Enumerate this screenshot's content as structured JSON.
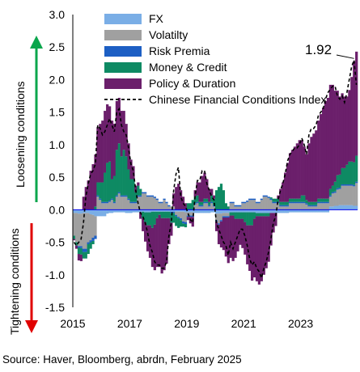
{
  "chart_data": {
    "type": "bar",
    "stacked": true,
    "x_start": "2015-01",
    "x_step": "month",
    "x_ticks": [
      "2015",
      "2017",
      "2019",
      "2021",
      "2023"
    ],
    "y_ticks": [
      "3.0",
      "2.5",
      "2.0",
      "1.5",
      "1.0",
      "0.5",
      "0.0",
      "-0.5",
      "-1.0",
      "-1.5"
    ],
    "ylim": [
      -1.5,
      3.0
    ],
    "legend_position": "top-right",
    "series": [
      {
        "name": "FX",
        "color": "#7aaee6",
        "values": [
          -0.05,
          -0.05,
          -0.06,
          -0.06,
          -0.05,
          -0.05,
          -0.05,
          -0.07,
          -0.08,
          -0.1,
          -0.1,
          -0.1,
          -0.1,
          -0.1,
          -0.06,
          -0.05,
          -0.05,
          -0.04,
          -0.04,
          -0.04,
          -0.04,
          -0.04,
          -0.05,
          -0.05,
          -0.05,
          -0.04,
          -0.04,
          -0.04,
          -0.04,
          -0.03,
          -0.04,
          -0.04,
          -0.04,
          -0.03,
          -0.03,
          -0.03,
          -0.03,
          -0.03,
          -0.03,
          -0.03,
          -0.03,
          -0.03,
          -0.03,
          -0.03,
          -0.03,
          -0.03,
          -0.03,
          -0.04,
          -0.04,
          -0.04,
          -0.04,
          -0.05,
          -0.05,
          -0.05,
          -0.05,
          -0.05,
          -0.05,
          -0.05,
          -0.04,
          -0.04,
          -0.06,
          -0.06,
          -0.06,
          -0.05,
          -0.05,
          -0.05,
          -0.04,
          -0.04,
          -0.04,
          -0.04,
          -0.04,
          -0.04,
          -0.04,
          -0.04,
          -0.04,
          -0.04,
          -0.04,
          -0.05,
          -0.05,
          -0.05,
          -0.05,
          -0.05,
          -0.05,
          -0.05,
          -0.05,
          -0.05,
          -0.05,
          -0.05,
          -0.05,
          -0.05,
          -0.05,
          -0.04,
          -0.04,
          -0.04,
          -0.04,
          -0.04,
          -0.04,
          -0.04,
          -0.04,
          -0.04,
          -0.04,
          -0.04,
          -0.04,
          -0.04,
          -0.04,
          -0.04,
          -0.04,
          -0.04,
          0.05,
          0.05,
          0.06,
          0.06,
          0.07,
          0.07,
          0.07,
          0.07,
          0.07,
          0.07,
          0.06,
          0.06
        ]
      },
      {
        "name": "Volatilty",
        "color": "#a0a0a0",
        "values": [
          -0.35,
          -0.45,
          -0.5,
          -0.5,
          -0.55,
          -0.55,
          -0.45,
          -0.4,
          -0.35,
          -0.3,
          0.2,
          0.15,
          0.1,
          0.1,
          0.1,
          0.12,
          0.15,
          0.1,
          0.2,
          0.25,
          0.2,
          0.2,
          0.2,
          0.15,
          0.1,
          0.1,
          0.1,
          0.2,
          0.2,
          0.25,
          0.25,
          0.2,
          0.2,
          0.2,
          0.18,
          0.15,
          0.1,
          0.1,
          0.15,
          0.1,
          0.05,
          0.05,
          0.05,
          -0.05,
          -0.08,
          -0.1,
          -0.15,
          -0.15,
          -0.05,
          -0.05,
          -0.05,
          0.08,
          0.1,
          0.05,
          0.05,
          0.1,
          0.1,
          0.05,
          0.1,
          0.05,
          -0.1,
          -0.15,
          -0.1,
          -0.05,
          -0.05,
          -0.05,
          0.1,
          0.1,
          0.05,
          0.05,
          0.05,
          0.1,
          0.1,
          0.12,
          0.15,
          0.15,
          0.15,
          0.1,
          0.1,
          0.15,
          0.2,
          0.2,
          0.18,
          0.15,
          0.1,
          0.1,
          0.1,
          0.05,
          0.05,
          0.05,
          0.05,
          0.1,
          0.1,
          0.1,
          0.1,
          0.1,
          0.1,
          0.1,
          0.08,
          0.05,
          0.05,
          0.05,
          0.05,
          0.1,
          0.1,
          0.1,
          0.1,
          0.1,
          0.15,
          0.2,
          0.2,
          0.25,
          0.25,
          0.3,
          0.3,
          0.3,
          0.3,
          0.3,
          0.3,
          0.35,
          0.3
        ]
      },
      {
        "name": "Risk Premia",
        "color": "#1d5fc4",
        "values": [
          0,
          0,
          -0.02,
          -0.03,
          -0.05,
          -0.05,
          -0.03,
          -0.03,
          -0.05,
          -0.05,
          0.02,
          0.02,
          0.02,
          0.02,
          0.02,
          0.02,
          0.02,
          0.02,
          0.02,
          0.02,
          0.02,
          0.02,
          0.02,
          0.02,
          0.02,
          0.02,
          0.02,
          0.02,
          0.02,
          0.02,
          0.02,
          0.02,
          0.02,
          0.02,
          0.02,
          0.02,
          0.02,
          0.02,
          0.02,
          0.02,
          0.02,
          -0.02,
          -0.02,
          -0.02,
          -0.02,
          -0.03,
          -0.03,
          -0.03,
          -0.02,
          -0.02,
          -0.02,
          0.02,
          0.02,
          0.02,
          0.02,
          0.02,
          0.02,
          0.02,
          0.02,
          0.02,
          -0.02,
          -0.02,
          -0.02,
          -0.02,
          -0.02,
          -0.02,
          0.02,
          0.02,
          0.02,
          0.02,
          0.02,
          0.02,
          0.02,
          0.02,
          0.02,
          0.02,
          0.02,
          0.02,
          0.02,
          0.02,
          0.02,
          0.02,
          0.02,
          0.02,
          0.02,
          0.02,
          0.02,
          0.02,
          0.02,
          0.02,
          0.02,
          0.02,
          0.02,
          0.02,
          0.02,
          0.02,
          0.02,
          0.02,
          0.02,
          0.02,
          0.02,
          0.02,
          0.02,
          0.02,
          0.02,
          0.02,
          0.02,
          0.02,
          0.02,
          0.02,
          0.02,
          0.02,
          0.02,
          0.02,
          0.02,
          0.02,
          0.02,
          0.02,
          0.02,
          0.02
        ]
      },
      {
        "name": "Money & Credit",
        "color": "#0e8a63",
        "values": [
          -0.05,
          -0.05,
          -0.1,
          -0.1,
          -0.1,
          -0.1,
          -0.15,
          -0.1,
          -0.05,
          0.05,
          0.2,
          0.25,
          0.3,
          0.45,
          0.6,
          0.6,
          0.3,
          0.4,
          0.7,
          0.75,
          0.6,
          0.7,
          0.6,
          0.45,
          0.35,
          0.35,
          0.15,
          0.15,
          0.1,
          -0.1,
          -0.15,
          -0.2,
          -0.2,
          -0.25,
          -0.2,
          -0.1,
          -0.05,
          -0.1,
          -0.1,
          -0.1,
          -0.1,
          -0.15,
          -0.15,
          -0.15,
          -0.15,
          -0.1,
          -0.05,
          -0.05,
          0.1,
          0.1,
          0.15,
          0.1,
          0.1,
          0.05,
          0.05,
          0.05,
          0.05,
          0.05,
          0.1,
          0.1,
          0.3,
          0.35,
          0.4,
          0.3,
          0.1,
          0.05,
          -0.05,
          -0.05,
          -0.1,
          -0.1,
          -0.1,
          -0.1,
          -0.15,
          -0.2,
          -0.2,
          -0.2,
          -0.1,
          -0.05,
          -0.05,
          -0.05,
          -0.05,
          -0.05,
          -0.05,
          0.02,
          0.05,
          0.05,
          0.05,
          0.05,
          0.05,
          0.05,
          0.05,
          0.05,
          0.05,
          0.05,
          0.05,
          0.05,
          0.1,
          0.1,
          0.05,
          0.05,
          0.05,
          0.05,
          0.05,
          0.05,
          0.05,
          0.05,
          0.05,
          0.05,
          0.1,
          0.1,
          0.15,
          0.2,
          0.2,
          0.25,
          0.25,
          0.3,
          0.35,
          0.35,
          0.35,
          0.4
        ]
      },
      {
        "name": "Policy & Duration",
        "color": "#6b1f6b",
        "values": [
          -0.02,
          -0.05,
          -0.1,
          -0.1,
          0.2,
          0.35,
          0.45,
          0.6,
          0.7,
          0.8,
          0.85,
          0.9,
          0.95,
          0.95,
          0.9,
          0.85,
          0.9,
          0.8,
          0.75,
          0.7,
          0.7,
          0.6,
          0.5,
          0.4,
          0.3,
          0.2,
          0.1,
          0.05,
          -0.1,
          -0.2,
          -0.3,
          -0.4,
          -0.5,
          -0.6,
          -0.7,
          -0.75,
          -0.8,
          -0.85,
          -0.8,
          -0.7,
          -0.4,
          -0.2,
          0.2,
          0.35,
          0.4,
          0.3,
          0.2,
          0.1,
          -0.05,
          -0.1,
          -0.15,
          0.1,
          0.2,
          0.3,
          0.4,
          0.4,
          0.3,
          0.2,
          0.1,
          0.05,
          -0.15,
          -0.3,
          -0.4,
          -0.5,
          -0.6,
          -0.7,
          -0.65,
          -0.7,
          -0.6,
          -0.5,
          -0.4,
          -0.45,
          -0.5,
          -0.6,
          -0.7,
          -0.85,
          -0.9,
          -1.0,
          -1.05,
          -1.0,
          -0.9,
          -0.8,
          -0.7,
          -0.5,
          -0.3,
          -0.2,
          0.05,
          0.2,
          0.3,
          0.45,
          0.6,
          0.7,
          0.75,
          0.8,
          0.85,
          0.9,
          0.85,
          0.75,
          0.7,
          0.9,
          1.0,
          1.05,
          1.1,
          1.2,
          1.3,
          1.4,
          1.5,
          1.55,
          1.6,
          1.55,
          1.4,
          1.3,
          1.2,
          1.15,
          1.1,
          1.05,
          1.1,
          1.3,
          1.55,
          1.6
        ]
      }
    ],
    "line": {
      "name": "Chinese Financial Conditions Index",
      "color": "#000000",
      "values": [
        -0.5,
        -0.55,
        -0.5,
        -0.45,
        -0.2,
        0.2,
        0.4,
        0.55,
        0.6,
        0.7,
        1.3,
        1.25,
        1.15,
        1.2,
        1.3,
        1.4,
        1.3,
        1.2,
        1.5,
        1.55,
        1.3,
        1.2,
        1.15,
        0.95,
        0.7,
        0.6,
        0.3,
        0.1,
        -0.05,
        -0.1,
        -0.2,
        -0.35,
        -0.55,
        -0.65,
        -0.8,
        -0.85,
        -0.85,
        -0.9,
        -0.9,
        -0.8,
        -0.4,
        -0.2,
        0.3,
        0.55,
        0.65,
        0.2,
        0.1,
        0.05,
        -0.05,
        -0.15,
        -0.2,
        0.2,
        0.45,
        0.45,
        0.6,
        0.6,
        0.4,
        0.3,
        0.2,
        0.15,
        -0.2,
        -0.3,
        -0.4,
        -0.5,
        -0.55,
        -0.7,
        -0.5,
        -0.6,
        -0.5,
        -0.4,
        -0.3,
        -0.3,
        -0.4,
        -0.55,
        -0.75,
        -0.85,
        -0.8,
        -0.9,
        -0.95,
        -1.05,
        -0.9,
        -0.8,
        -0.65,
        -0.45,
        -0.2,
        -0.1,
        0.15,
        0.3,
        0.4,
        0.55,
        0.75,
        0.85,
        0.9,
        0.95,
        0.95,
        1.0,
        1.1,
        1.0,
        0.85,
        1.15,
        1.25,
        1.25,
        1.3,
        1.45,
        1.5,
        1.55,
        1.7,
        1.8,
        1.85,
        1.9,
        1.9,
        1.75,
        1.7,
        1.75,
        1.65,
        1.8,
        2.0,
        2.2,
        2.3,
        1.92
      ]
    },
    "annotation": {
      "label": "1.92",
      "x_index": 119,
      "value": 1.92
    },
    "ylabel_top": "Loosening conditions",
    "ylabel_bottom": "Tightening  conditions",
    "arrow_up_color": "#0aa64c",
    "arrow_down_color": "#e00000"
  },
  "source": "Source: Haver, Bloomberg, abrdn, February 2025"
}
